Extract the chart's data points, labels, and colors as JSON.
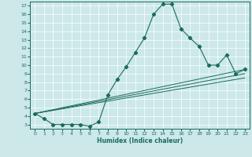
{
  "xlabel": "Humidex (Indice chaleur)",
  "bg_color": "#cce8e8",
  "line_color": "#1a6b5e",
  "grid_color": "#ffffff",
  "xlim": [
    -0.5,
    23.5
  ],
  "ylim": [
    2.5,
    17.5
  ],
  "yticks": [
    3,
    4,
    5,
    6,
    7,
    8,
    9,
    10,
    11,
    12,
    13,
    14,
    15,
    16,
    17
  ],
  "xticks": [
    0,
    1,
    2,
    3,
    4,
    5,
    6,
    7,
    8,
    9,
    10,
    11,
    12,
    13,
    14,
    15,
    16,
    17,
    18,
    19,
    20,
    21,
    22,
    23
  ],
  "line1_x": [
    0,
    1,
    2,
    3,
    4,
    5,
    6,
    7,
    8,
    9,
    10,
    11,
    12,
    13,
    14,
    15,
    16,
    17,
    18,
    19,
    20,
    21,
    22,
    23
  ],
  "line1_y": [
    4.3,
    3.7,
    3.0,
    3.0,
    3.0,
    3.0,
    2.8,
    3.3,
    6.5,
    8.3,
    9.8,
    11.5,
    13.2,
    16.0,
    17.2,
    17.2,
    14.3,
    13.2,
    12.2,
    10.0,
    10.0,
    11.2,
    9.0,
    9.5
  ],
  "line2_x": [
    0,
    23
  ],
  "line2_y": [
    4.3,
    9.5
  ],
  "line3_x": [
    0,
    23
  ],
  "line3_y": [
    4.3,
    9.0
  ],
  "line4_x": [
    0,
    23
  ],
  "line4_y": [
    4.3,
    8.5
  ],
  "marker": "D",
  "marker_size": 2.2,
  "xlabel_fontsize": 5.5,
  "tick_fontsize": 4.5
}
